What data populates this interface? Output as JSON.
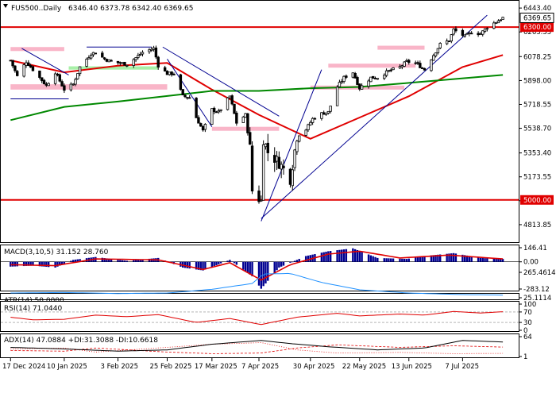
{
  "chart_data": {
    "type": "candlestick",
    "symbol_title": "FUS500..Daily",
    "ohlc_readout": "6346.40 6373.78 6342.40 6369.65",
    "colors": {
      "bull": "#ffffff",
      "bear": "#000000",
      "support_line": "#e00000",
      "ma_fast": "#e00000",
      "ma_slow": "#008800",
      "trend": "#000090",
      "zone_pink": "#f9b5c8",
      "zone_green": "#a8f0a8",
      "macd_bar": "#000090",
      "macd_signal": "#e00000",
      "atr": "#1e90ff",
      "rsi": "#e00000",
      "adx": "#000000",
      "plus_di": "#e00000",
      "minus_di": "#e00000"
    },
    "price_axis": {
      "range": [
        4700,
        6480
      ],
      "ticks": [
        "6443.40",
        "6263.55",
        "6078.25",
        "5898.00",
        "5718.55",
        "5538.70",
        "5353.40",
        "5173.55",
        "4993.70",
        "4813.85"
      ]
    },
    "current_price": "6369.65",
    "levels": [
      "6300.00",
      "5000.00"
    ],
    "zones": [
      {
        "color": "pink",
        "from": "2024-12-17",
        "to": "2025-01-10",
        "low": 6120,
        "high": 6150
      },
      {
        "color": "pink",
        "from": "2024-12-17",
        "to": "2025-02-25",
        "low": 5830,
        "high": 5870
      },
      {
        "color": "pink",
        "from": "2025-03-17",
        "to": "2025-04-16",
        "low": 5520,
        "high": 5550
      },
      {
        "color": "pink",
        "from": "2025-04-30",
        "to": "2025-06-11",
        "low": 5830,
        "high": 5860
      },
      {
        "color": "pink",
        "from": "2025-05-08",
        "to": "2025-06-16",
        "low": 5995,
        "high": 6025
      },
      {
        "color": "pink",
        "from": "2025-05-30",
        "to": "2025-06-20",
        "low": 6130,
        "high": 6160
      },
      {
        "color": "green",
        "from": "2025-01-12",
        "to": "2025-02-21",
        "low": 5980,
        "high": 6005
      }
    ],
    "date_ticks": [
      "17 Dec 2024",
      "10 Jan 2025",
      "3 Feb 2025",
      "25 Feb 2025",
      "17 Mar 2025",
      "7 Apr 2025",
      "30 Apr 2025",
      "22 May 2025",
      "13 Jun 2025",
      "7 Jul 2025"
    ],
    "close_points": [
      [
        "2024-12-17",
        6050
      ],
      [
        "2024-12-20",
        5930
      ],
      [
        "2024-12-24",
        6040
      ],
      [
        "2024-12-27",
        5980
      ],
      [
        "2025-01-02",
        5860
      ],
      [
        "2025-01-06",
        5960
      ],
      [
        "2025-01-10",
        5830
      ],
      [
        "2025-01-14",
        5870
      ],
      [
        "2025-01-17",
        6000
      ],
      [
        "2025-01-22",
        6100
      ],
      [
        "2025-01-24",
        6110
      ],
      [
        "2025-01-28",
        6060
      ],
      [
        "2025-01-31",
        6040
      ],
      [
        "2025-02-04",
        6030
      ],
      [
        "2025-02-07",
        6020
      ],
      [
        "2025-02-11",
        6070
      ],
      [
        "2025-02-14",
        6110
      ],
      [
        "2025-02-19",
        6140
      ],
      [
        "2025-02-21",
        6010
      ],
      [
        "2025-02-25",
        5950
      ],
      [
        "2025-02-28",
        5950
      ],
      [
        "2025-03-04",
        5780
      ],
      [
        "2025-03-07",
        5770
      ],
      [
        "2025-03-10",
        5620
      ],
      [
        "2025-03-13",
        5520
      ],
      [
        "2025-03-17",
        5680
      ],
      [
        "2025-03-20",
        5660
      ],
      [
        "2025-03-25",
        5780
      ],
      [
        "2025-03-28",
        5580
      ],
      [
        "2025-04-01",
        5640
      ],
      [
        "2025-04-03",
        5390
      ],
      [
        "2025-04-04",
        5070
      ],
      [
        "2025-04-08",
        4990
      ],
      [
        "2025-04-09",
        5460
      ],
      [
        "2025-04-11",
        5360
      ],
      [
        "2025-04-16",
        5280
      ],
      [
        "2025-04-21",
        5160
      ],
      [
        "2025-04-24",
        5480
      ],
      [
        "2025-04-28",
        5530
      ],
      [
        "2025-05-01",
        5610
      ],
      [
        "2025-05-05",
        5650
      ],
      [
        "2025-05-08",
        5660
      ],
      [
        "2025-05-12",
        5850
      ],
      [
        "2025-05-15",
        5920
      ],
      [
        "2025-05-19",
        5960
      ],
      [
        "2025-05-22",
        5840
      ],
      [
        "2025-05-27",
        5920
      ],
      [
        "2025-05-30",
        5920
      ],
      [
        "2025-06-04",
        5970
      ],
      [
        "2025-06-09",
        6000
      ],
      [
        "2025-06-12",
        6040
      ],
      [
        "2025-06-16",
        6030
      ],
      [
        "2025-06-20",
        5980
      ],
      [
        "2025-06-24",
        6090
      ],
      [
        "2025-06-27",
        6170
      ],
      [
        "2025-07-01",
        6200
      ],
      [
        "2025-07-03",
        6280
      ],
      [
        "2025-07-08",
        6230
      ],
      [
        "2025-07-11",
        6260
      ],
      [
        "2025-07-15",
        6250
      ],
      [
        "2025-07-18",
        6300
      ],
      [
        "2025-07-22",
        6340
      ],
      [
        "2025-07-25",
        6370
      ]
    ],
    "ma_fast_points": [
      [
        "2024-12-17",
        6050
      ],
      [
        "2025-01-10",
        5960
      ],
      [
        "2025-02-03",
        6010
      ],
      [
        "2025-02-25",
        6030
      ],
      [
        "2025-03-17",
        5830
      ],
      [
        "2025-04-07",
        5640
      ],
      [
        "2025-04-21",
        5530
      ],
      [
        "2025-04-30",
        5460
      ],
      [
        "2025-05-22",
        5620
      ],
      [
        "2025-06-13",
        5780
      ],
      [
        "2025-07-07",
        6000
      ],
      [
        "2025-07-25",
        6090
      ]
    ],
    "ma_slow_points": [
      [
        "2024-12-17",
        5600
      ],
      [
        "2025-01-10",
        5700
      ],
      [
        "2025-02-03",
        5740
      ],
      [
        "2025-03-17",
        5820
      ],
      [
        "2025-04-07",
        5820
      ],
      [
        "2025-04-30",
        5840
      ],
      [
        "2025-05-22",
        5850
      ],
      [
        "2025-06-13",
        5880
      ],
      [
        "2025-07-25",
        5940
      ]
    ],
    "trend_lines": [
      [
        [
          "2024-12-17",
          5760
        ],
        [
          "2025-01-12",
          5760
        ]
      ],
      [
        [
          "2024-12-22",
          6140
        ],
        [
          "2025-01-12",
          5940
        ]
      ],
      [
        [
          "2025-01-20",
          6150
        ],
        [
          "2025-02-18",
          6150
        ]
      ],
      [
        [
          "2025-02-23",
          6150
        ],
        [
          "2025-04-16",
          5630
        ]
      ],
      [
        [
          "2025-02-25",
          6060
        ],
        [
          "2025-03-17",
          5550
        ]
      ],
      [
        [
          "2025-04-08",
          4840
        ],
        [
          "2025-05-05",
          5980
        ]
      ],
      [
        [
          "2025-04-08",
          4860
        ],
        [
          "2025-07-18",
          6390
        ]
      ]
    ],
    "macd": {
      "label": "MACD(3,10,5) 31.152 28.760",
      "ticks": [
        "146.41",
        "0.00",
        "-283.12"
      ],
      "range": [
        -283.12,
        146.41
      ],
      "hist": [
        [
          "2024-12-17",
          -50
        ],
        [
          "2024-12-27",
          -40
        ],
        [
          "2025-01-06",
          -60
        ],
        [
          "2025-01-14",
          20
        ],
        [
          "2025-01-24",
          50
        ],
        [
          "2025-02-07",
          10
        ],
        [
          "2025-02-21",
          40
        ],
        [
          "2025-03-04",
          -60
        ],
        [
          "2025-03-13",
          -90
        ],
        [
          "2025-03-25",
          20
        ],
        [
          "2025-04-04",
          -150
        ],
        [
          "2025-04-08",
          -280
        ],
        [
          "2025-04-16",
          -60
        ],
        [
          "2025-04-28",
          60
        ],
        [
          "2025-05-08",
          110
        ],
        [
          "2025-05-19",
          140
        ],
        [
          "2025-05-30",
          40
        ],
        [
          "2025-06-12",
          30
        ],
        [
          "2025-06-20",
          60
        ],
        [
          "2025-07-03",
          90
        ],
        [
          "2025-07-15",
          40
        ],
        [
          "2025-07-25",
          30
        ]
      ],
      "signal": [
        [
          "2024-12-17",
          -30
        ],
        [
          "2025-01-06",
          -40
        ],
        [
          "2025-01-24",
          30
        ],
        [
          "2025-02-21",
          20
        ],
        [
          "2025-03-13",
          -80
        ],
        [
          "2025-03-25",
          -10
        ],
        [
          "2025-04-08",
          -190
        ],
        [
          "2025-04-21",
          -30
        ],
        [
          "2025-05-08",
          80
        ],
        [
          "2025-05-22",
          110
        ],
        [
          "2025-06-09",
          40
        ],
        [
          "2025-07-01",
          70
        ],
        [
          "2025-07-25",
          30
        ]
      ]
    },
    "atr": {
      "label": "ATR(14) 50.0000",
      "ticks": [
        "265.4614",
        "25.1114"
      ],
      "range": [
        25.1114,
        265.4614
      ],
      "points": [
        [
          "2024-12-17",
          70
        ],
        [
          "2025-01-10",
          75
        ],
        [
          "2025-02-03",
          65
        ],
        [
          "2025-02-25",
          70
        ],
        [
          "2025-03-17",
          105
        ],
        [
          "2025-04-04",
          160
        ],
        [
          "2025-04-09",
          250
        ],
        [
          "2025-04-21",
          255
        ],
        [
          "2025-05-05",
          170
        ],
        [
          "2025-05-22",
          100
        ],
        [
          "2025-06-13",
          70
        ],
        [
          "2025-07-07",
          55
        ],
        [
          "2025-07-25",
          50
        ]
      ]
    },
    "rsi": {
      "label": "RSI(14) 71.0440",
      "ticks": [
        "100",
        "70",
        "30",
        "0"
      ],
      "range": [
        0,
        100
      ],
      "points": [
        [
          "2024-12-17",
          50
        ],
        [
          "2024-12-27",
          40
        ],
        [
          "2025-01-10",
          42
        ],
        [
          "2025-01-24",
          58
        ],
        [
          "2025-02-07",
          52
        ],
        [
          "2025-02-21",
          60
        ],
        [
          "2025-03-10",
          30
        ],
        [
          "2025-03-25",
          45
        ],
        [
          "2025-04-08",
          22
        ],
        [
          "2025-04-24",
          50
        ],
        [
          "2025-05-12",
          65
        ],
        [
          "2025-05-22",
          55
        ],
        [
          "2025-06-09",
          62
        ],
        [
          "2025-06-20",
          58
        ],
        [
          "2025-07-03",
          72
        ],
        [
          "2025-07-15",
          66
        ],
        [
          "2025-07-25",
          71
        ]
      ]
    },
    "adx": {
      "label": "ADX(14) 47.0884 +DI:31.3088 -DI:10.6618",
      "ticks": [
        "64",
        "1"
      ],
      "range": [
        1,
        64
      ],
      "adx": [
        [
          "2024-12-17",
          30
        ],
        [
          "2025-01-10",
          25
        ],
        [
          "2025-02-03",
          18
        ],
        [
          "2025-02-25",
          22
        ],
        [
          "2025-03-17",
          40
        ],
        [
          "2025-04-08",
          52
        ],
        [
          "2025-04-21",
          42
        ],
        [
          "2025-05-08",
          32
        ],
        [
          "2025-05-30",
          22
        ],
        [
          "2025-06-20",
          28
        ],
        [
          "2025-07-07",
          52
        ],
        [
          "2025-07-25",
          47
        ]
      ],
      "plus_di": [
        [
          "2024-12-17",
          20
        ],
        [
          "2025-01-10",
          18
        ],
        [
          "2025-01-24",
          28
        ],
        [
          "2025-02-25",
          15
        ],
        [
          "2025-03-17",
          10
        ],
        [
          "2025-04-08",
          12
        ],
        [
          "2025-04-24",
          28
        ],
        [
          "2025-05-12",
          38
        ],
        [
          "2025-06-09",
          30
        ],
        [
          "2025-07-03",
          35
        ],
        [
          "2025-07-25",
          31
        ]
      ],
      "minus_di": [
        [
          "2024-12-17",
          25
        ],
        [
          "2025-01-10",
          28
        ],
        [
          "2025-01-24",
          15
        ],
        [
          "2025-02-25",
          30
        ],
        [
          "2025-03-17",
          40
        ],
        [
          "2025-04-08",
          45
        ],
        [
          "2025-04-24",
          22
        ],
        [
          "2025-05-12",
          12
        ],
        [
          "2025-06-09",
          14
        ],
        [
          "2025-07-03",
          10
        ],
        [
          "2025-07-25",
          11
        ]
      ]
    }
  }
}
